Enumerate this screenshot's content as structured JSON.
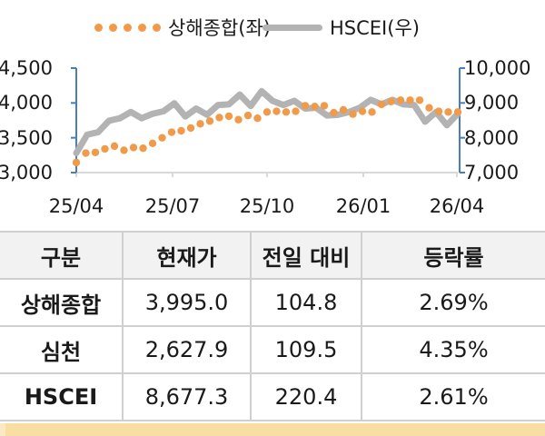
{
  "legend": {
    "series1_label": "상해종합(좌)",
    "series2_label": "HSCEI(우)"
  },
  "colors": {
    "series1": "#F09A4A",
    "series2": "#B3B3B3",
    "axis": "#4A7EBB",
    "gridline": "#D9D9D9",
    "table_header_bg": "#F2F2F2",
    "table_border": "#D0D0D0",
    "footer_bar": "#F8DEA2"
  },
  "axes": {
    "left_ticks": [
      "4,500",
      "4,000",
      "3,500",
      "3,000"
    ],
    "right_ticks": [
      "10,000",
      "9,000",
      "8,000",
      "7,000"
    ],
    "x_ticks": [
      "25/04",
      "25/07",
      "25/10",
      "26/01",
      "26/04"
    ]
  },
  "table": {
    "headers": [
      "구분",
      "현재가",
      "전일 대비",
      "등락률"
    ],
    "rows": [
      {
        "name": "상해종합",
        "price": "3,995.0",
        "change": "104.8",
        "rate": "2.69%"
      },
      {
        "name": "심천",
        "price": "2,627.9",
        "change": "109.5",
        "rate": "4.35%"
      },
      {
        "name": "HSCEI",
        "price": "8,677.3",
        "change": "220.4",
        "rate": "2.61%"
      }
    ]
  },
  "chart_data": {
    "type": "line",
    "title": "",
    "xlabel": "",
    "ylabel": "상해종합(좌) / HSCEI(우)",
    "categories": [
      "25/04",
      "25/07",
      "25/10",
      "26/01",
      "26/04"
    ],
    "ylim_left": [
      3000,
      4500
    ],
    "ylim_right": [
      7000,
      10000
    ],
    "grid": false,
    "legend_position": "top",
    "series": [
      {
        "name": "상해종합(좌)",
        "axis": "left",
        "style": "dotted",
        "x": [
          "25/04",
          "25/04",
          "25/05",
          "25/05",
          "25/05",
          "25/05",
          "25/06",
          "25/06",
          "25/06",
          "25/06",
          "25/07",
          "25/07",
          "25/07",
          "25/07",
          "25/08",
          "25/08",
          "25/08",
          "25/08",
          "25/09",
          "25/09",
          "25/09",
          "25/09",
          "25/10",
          "25/10",
          "25/10",
          "25/11",
          "25/11",
          "25/11",
          "25/11",
          "25/12",
          "25/12",
          "25/12",
          "26/01",
          "26/01",
          "26/01",
          "26/02",
          "26/02",
          "26/03",
          "26/03",
          "26/03",
          "26/04"
        ],
        "values": [
          3145,
          3280,
          3290,
          3340,
          3380,
          3320,
          3360,
          3350,
          3420,
          3500,
          3580,
          3600,
          3640,
          3700,
          3740,
          3790,
          3810,
          3760,
          3820,
          3780,
          3870,
          3880,
          3870,
          3880,
          3960,
          3950,
          3960,
          3860,
          3900,
          3840,
          3880,
          3870,
          3980,
          4020,
          4040,
          4040,
          4040,
          3930,
          3880,
          3870,
          3870
        ]
      },
      {
        "name": "HSCEI(우)",
        "axis": "right",
        "style": "line",
        "x": [
          "25/04",
          "25/04",
          "25/05",
          "25/05",
          "25/05",
          "25/06",
          "25/06",
          "25/06",
          "25/07",
          "25/07",
          "25/07",
          "25/08",
          "25/08",
          "25/08",
          "25/09",
          "25/09",
          "25/09",
          "25/10",
          "25/10",
          "25/10",
          "25/11",
          "25/11",
          "25/11",
          "25/12",
          "25/12",
          "25/12",
          "26/01",
          "26/01",
          "26/01",
          "26/02",
          "26/02",
          "26/02",
          "26/03",
          "26/03",
          "26/03",
          "26/04"
        ],
        "values": [
          7600,
          8050,
          8200,
          8450,
          8600,
          8700,
          8600,
          8650,
          8800,
          8950,
          8650,
          8800,
          8700,
          8900,
          9000,
          9200,
          8950,
          9300,
          9100,
          8900,
          9100,
          8800,
          8900,
          8600,
          8700,
          8700,
          8900,
          9050,
          9000,
          9050,
          9000,
          8900,
          8500,
          8700,
          8400,
          8650
        ]
      }
    ]
  }
}
